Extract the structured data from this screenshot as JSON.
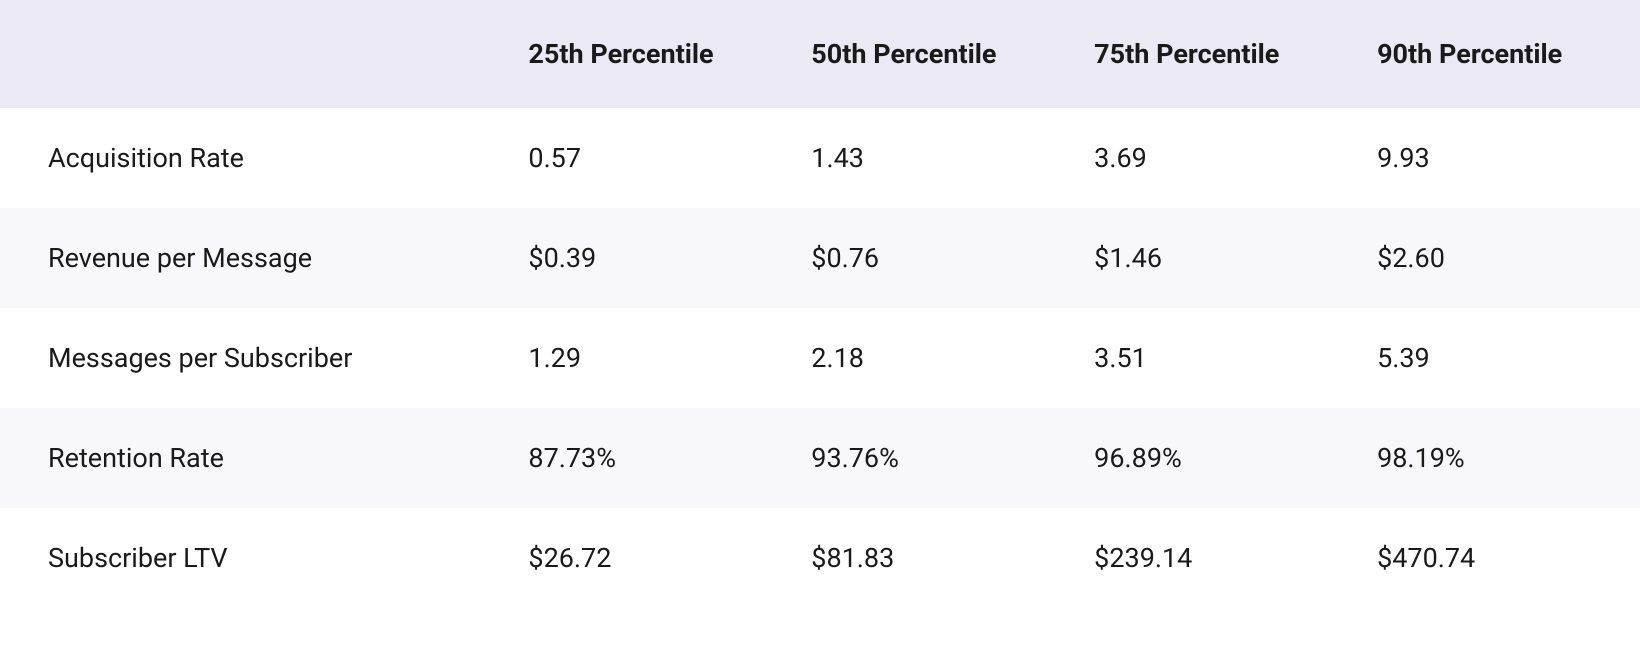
{
  "table": {
    "type": "table",
    "background_color": "#ffffff",
    "header_background_color": "#ebeaf4",
    "row_alt_background_color": "#f8f7fb",
    "text_color": "#1a1a1a",
    "header_font_weight": 700,
    "body_font_weight": 400,
    "font_size_pt": 20,
    "columns": [
      {
        "label": "",
        "width_pct": 31
      },
      {
        "label": "25th Percentile",
        "width_pct": 17.25
      },
      {
        "label": "50th Percentile",
        "width_pct": 17.25
      },
      {
        "label": "75th Percentile",
        "width_pct": 17.25
      },
      {
        "label": "90th Percentile",
        "width_pct": 17.25
      }
    ],
    "rows": [
      {
        "metric": "Acquisition Rate",
        "p25": "0.57",
        "p50": "1.43",
        "p75": "3.69",
        "p90": "9.93"
      },
      {
        "metric": "Revenue per Message",
        "p25": "$0.39",
        "p50": "$0.76",
        "p75": "$1.46",
        "p90": "$2.60"
      },
      {
        "metric": "Messages per Subscriber",
        "p25": "1.29",
        "p50": "2.18",
        "p75": "3.51",
        "p90": "5.39"
      },
      {
        "metric": "Retention Rate",
        "p25": "87.73%",
        "p50": "93.76%",
        "p75": "96.89%",
        "p90": "98.19%"
      },
      {
        "metric": "Subscriber LTV",
        "p25": "$26.72",
        "p50": "$81.83",
        "p75": "$239.14",
        "p90": "$470.74"
      }
    ]
  }
}
